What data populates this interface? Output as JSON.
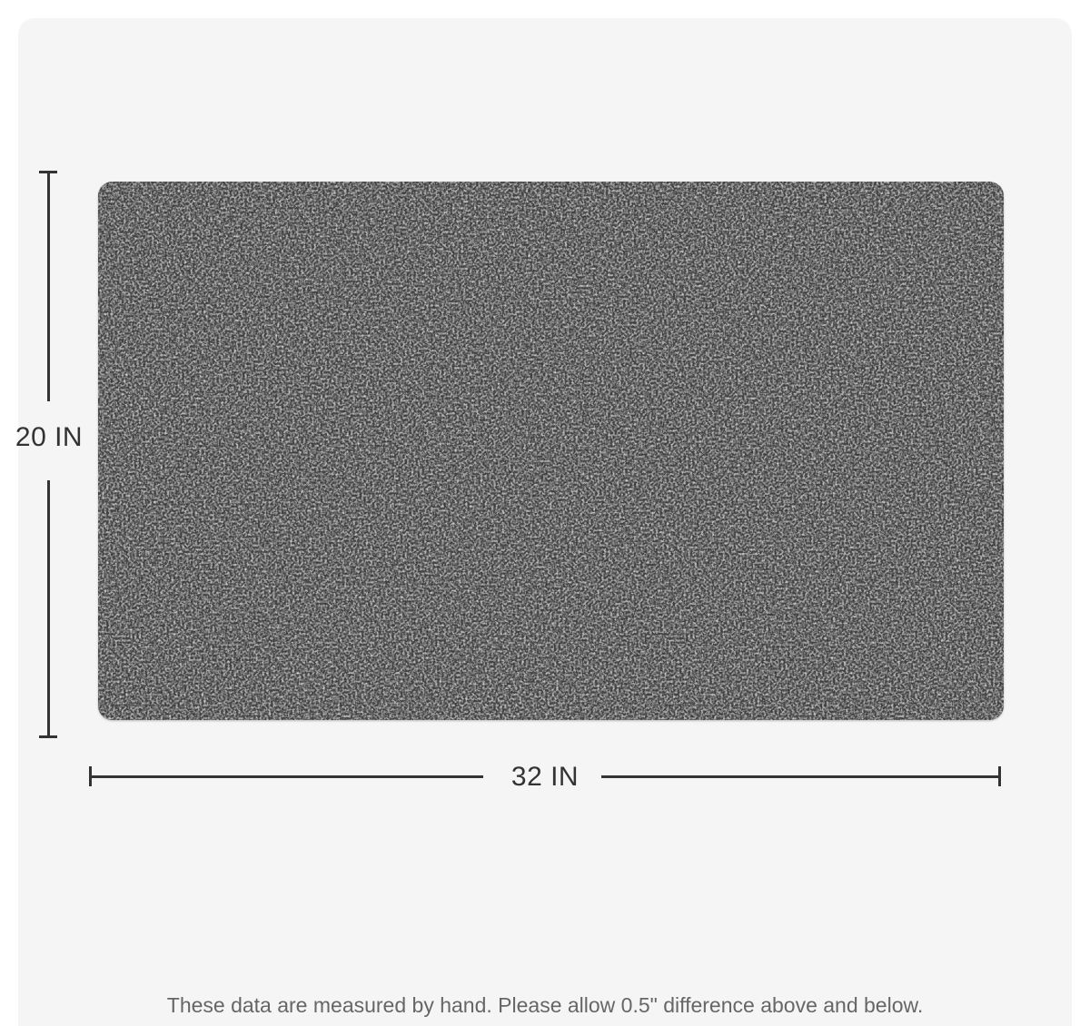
{
  "dimensions": {
    "height_label": "20 IN",
    "width_label": "32 IN"
  },
  "product": {
    "image_icon": "doormat-image",
    "color": "#474747"
  },
  "note": "These data are measured by hand. Please allow 0.5\" difference above and below."
}
